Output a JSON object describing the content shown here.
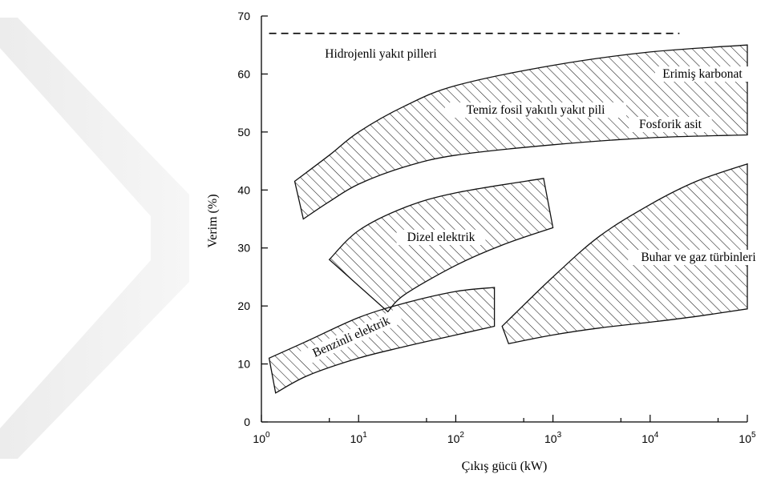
{
  "chart_data": {
    "type": "area",
    "xlabel": "Çıkış gücü (kW)",
    "ylabel": "Verim (%)",
    "x_scale": "log10",
    "xlim": [
      1,
      100000
    ],
    "ylim": [
      0,
      70
    ],
    "x_ticks": [
      1,
      10,
      100,
      1000,
      10000,
      100000
    ],
    "x_tick_labels": [
      {
        "base": "10",
        "exp": "0"
      },
      {
        "base": "10",
        "exp": "1"
      },
      {
        "base": "10",
        "exp": "2"
      },
      {
        "base": "10",
        "exp": "3"
      },
      {
        "base": "10",
        "exp": "4"
      },
      {
        "base": "10",
        "exp": "5"
      }
    ],
    "y_ticks": [
      0,
      10,
      20,
      30,
      40,
      50,
      60,
      70
    ],
    "y_tick_labels": [
      "0",
      "10",
      "20",
      "30",
      "40",
      "50",
      "60",
      "70"
    ],
    "grid": false,
    "lines": [
      {
        "label": "Hidrojenli yakıt pilleri",
        "style": "dashed",
        "points": [
          [
            1.2,
            67
          ],
          [
            20000,
            67
          ]
        ]
      }
    ],
    "bands": [
      {
        "label": "Temiz fosil yakıtlı yakıt pili",
        "upper": [
          [
            2.2,
            41.5
          ],
          [
            5,
            46
          ],
          [
            10,
            50
          ],
          [
            30,
            54.5
          ],
          [
            100,
            58
          ],
          [
            1000,
            61.5
          ],
          [
            10000,
            63.8
          ],
          [
            100000,
            65
          ]
        ],
        "lower": [
          [
            2.7,
            35
          ],
          [
            5,
            38
          ],
          [
            10,
            41
          ],
          [
            30,
            44
          ],
          [
            100,
            46
          ],
          [
            1000,
            47.8
          ],
          [
            10000,
            49
          ],
          [
            100000,
            49.5
          ]
        ]
      },
      {
        "label": "Dizel elektrik",
        "upper": [
          [
            5,
            28
          ],
          [
            10,
            33
          ],
          [
            30,
            37
          ],
          [
            100,
            39.5
          ],
          [
            800,
            42
          ]
        ],
        "lower": [
          [
            20,
            19
          ],
          [
            30,
            22
          ],
          [
            100,
            27
          ],
          [
            300,
            30.5
          ],
          [
            1000,
            33.5
          ]
        ]
      },
      {
        "label": "Benzinli elektrik",
        "upper": [
          [
            1.2,
            11
          ],
          [
            3,
            14
          ],
          [
            10,
            18
          ],
          [
            30,
            20.5
          ],
          [
            100,
            22.5
          ],
          [
            250,
            23.2
          ]
        ],
        "lower": [
          [
            1.4,
            5
          ],
          [
            3,
            8
          ],
          [
            10,
            11
          ],
          [
            30,
            13
          ],
          [
            100,
            15
          ],
          [
            250,
            16.5
          ]
        ]
      },
      {
        "label": "Buhar ve gaz türbinleri",
        "upper": [
          [
            300,
            16.5
          ],
          [
            1000,
            25
          ],
          [
            3000,
            32
          ],
          [
            10000,
            37.5
          ],
          [
            30000,
            41.5
          ],
          [
            100000,
            44.5
          ]
        ],
        "lower": [
          [
            350,
            13.5
          ],
          [
            1000,
            15
          ],
          [
            3000,
            16.2
          ],
          [
            10000,
            17.2
          ],
          [
            30000,
            18.2
          ],
          [
            100000,
            19.5
          ]
        ]
      }
    ],
    "annotations": [
      {
        "text": "Erimiş karbonat",
        "x": 30000,
        "y": 62
      },
      {
        "text": "Fosforik asit",
        "x": 30000,
        "y": 51.5
      }
    ]
  }
}
